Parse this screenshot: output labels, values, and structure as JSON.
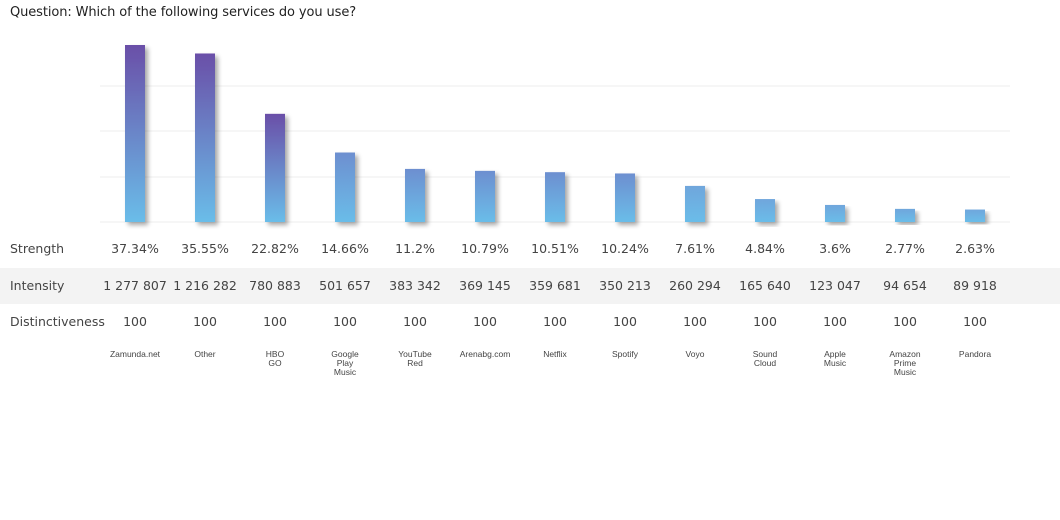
{
  "question": "Question: Which of the following services do you use?",
  "row_labels": {
    "strength": "Strength",
    "intensity": "Intensity",
    "distinctiveness": "Distinctiveness"
  },
  "colors": {
    "bar_top_high": "#6a4fa8",
    "bar_bottom": "#6bbde9",
    "bar_mid": "#6d8fd0",
    "gridline": "#eeeeee",
    "row_shade": "#f3f3f3"
  },
  "chart_data": {
    "type": "bar",
    "categories": [
      "Zamunda.net",
      "Other",
      "HBO\nGO",
      "Google\nPlay\nMusic",
      "YouTube\nRed",
      "Arenabg.com",
      "Netflix",
      "Spotify",
      "Voyo",
      "Sound\nCloud",
      "Apple\nMusic",
      "Amazon\nPrime\nMusic",
      "Pandora"
    ],
    "values": [
      37.34,
      35.55,
      22.82,
      14.66,
      11.2,
      10.79,
      10.51,
      10.24,
      7.61,
      4.84,
      3.6,
      2.77,
      2.63
    ],
    "strength_labels": [
      "37.34%",
      "35.55%",
      "22.82%",
      "14.66%",
      "11.2%",
      "10.79%",
      "10.51%",
      "10.24%",
      "7.61%",
      "4.84%",
      "3.6%",
      "2.77%",
      "2.63%"
    ],
    "intensity_labels": [
      "1 277 807",
      "1 216 282",
      "780 883",
      "501 657",
      "383 342",
      "369 145",
      "359 681",
      "350 213",
      "260 294",
      "165 640",
      "123 047",
      "94 654",
      "89 918"
    ],
    "distinctiveness_labels": [
      "100",
      "100",
      "100",
      "100",
      "100",
      "100",
      "100",
      "100",
      "100",
      "100",
      "100",
      "100",
      "100"
    ],
    "ylim": [
      0,
      37.34
    ],
    "grid": true
  }
}
